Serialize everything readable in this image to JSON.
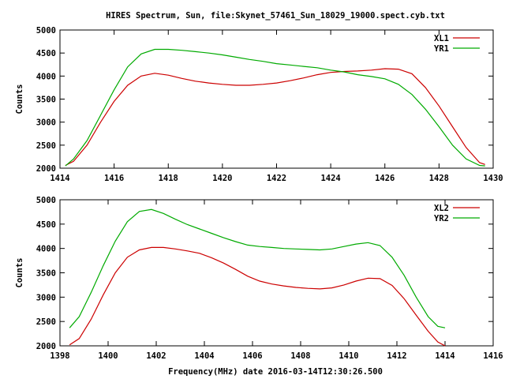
{
  "chart_data": [
    {
      "type": "line",
      "title": "HIRES Spectrum, Sun, file:Skynet_57461_Sun_18029_19000.spect.cyb.txt",
      "xlabel": "",
      "ylabel": "Counts",
      "xlim": [
        1414,
        1430
      ],
      "ylim": [
        2000,
        5000
      ],
      "x_ticks": [
        1414,
        1416,
        1418,
        1420,
        1422,
        1424,
        1426,
        1428,
        1430
      ],
      "y_ticks": [
        2000,
        2500,
        3000,
        3500,
        4000,
        4500,
        5000
      ],
      "legend_position": "top-right",
      "series": [
        {
          "name": "XL1",
          "color": "#cc0000",
          "points": [
            [
              1414.2,
              2060
            ],
            [
              1414.5,
              2150
            ],
            [
              1415,
              2500
            ],
            [
              1415.5,
              3000
            ],
            [
              1416,
              3450
            ],
            [
              1416.5,
              3800
            ],
            [
              1417,
              4000
            ],
            [
              1417.5,
              4060
            ],
            [
              1418,
              4020
            ],
            [
              1418.5,
              3950
            ],
            [
              1419,
              3890
            ],
            [
              1419.5,
              3850
            ],
            [
              1420,
              3820
            ],
            [
              1420.5,
              3800
            ],
            [
              1421,
              3800
            ],
            [
              1421.5,
              3820
            ],
            [
              1422,
              3850
            ],
            [
              1422.5,
              3900
            ],
            [
              1423,
              3960
            ],
            [
              1423.5,
              4030
            ],
            [
              1424,
              4080
            ],
            [
              1424.5,
              4100
            ],
            [
              1425,
              4110
            ],
            [
              1425.5,
              4130
            ],
            [
              1426,
              4160
            ],
            [
              1426.5,
              4150
            ],
            [
              1427,
              4050
            ],
            [
              1427.5,
              3750
            ],
            [
              1428,
              3350
            ],
            [
              1428.5,
              2900
            ],
            [
              1429,
              2450
            ],
            [
              1429.5,
              2120
            ],
            [
              1429.7,
              2080
            ]
          ]
        },
        {
          "name": "YR1",
          "color": "#00aa00",
          "points": [
            [
              1414.2,
              2050
            ],
            [
              1414.5,
              2200
            ],
            [
              1415,
              2600
            ],
            [
              1415.5,
              3150
            ],
            [
              1416,
              3700
            ],
            [
              1416.5,
              4200
            ],
            [
              1417,
              4480
            ],
            [
              1417.5,
              4580
            ],
            [
              1418,
              4580
            ],
            [
              1418.5,
              4560
            ],
            [
              1419,
              4530
            ],
            [
              1419.5,
              4500
            ],
            [
              1420,
              4460
            ],
            [
              1420.5,
              4410
            ],
            [
              1421,
              4360
            ],
            [
              1421.5,
              4320
            ],
            [
              1422,
              4270
            ],
            [
              1422.5,
              4240
            ],
            [
              1423,
              4210
            ],
            [
              1423.5,
              4180
            ],
            [
              1424,
              4130
            ],
            [
              1424.5,
              4090
            ],
            [
              1425,
              4030
            ],
            [
              1425.5,
              3990
            ],
            [
              1426,
              3940
            ],
            [
              1426.5,
              3820
            ],
            [
              1427,
              3600
            ],
            [
              1427.5,
              3280
            ],
            [
              1428,
              2900
            ],
            [
              1428.5,
              2500
            ],
            [
              1429,
              2200
            ],
            [
              1429.5,
              2060
            ],
            [
              1429.7,
              2050
            ]
          ]
        }
      ]
    },
    {
      "type": "line",
      "title": "",
      "xlabel": "Frequency(MHz) date 2016-03-14T12:30:26.500",
      "ylabel": "Counts",
      "xlim": [
        1398,
        1416
      ],
      "ylim": [
        2000,
        5000
      ],
      "x_ticks": [
        1398,
        1400,
        1402,
        1404,
        1406,
        1408,
        1410,
        1412,
        1414,
        1416
      ],
      "y_ticks": [
        2000,
        2500,
        3000,
        3500,
        4000,
        4500,
        5000
      ],
      "legend_position": "top-right",
      "series": [
        {
          "name": "XL2",
          "color": "#cc0000",
          "points": [
            [
              1398.4,
              2020
            ],
            [
              1398.8,
              2150
            ],
            [
              1399.3,
              2550
            ],
            [
              1399.8,
              3050
            ],
            [
              1400.3,
              3500
            ],
            [
              1400.8,
              3820
            ],
            [
              1401.3,
              3970
            ],
            [
              1401.8,
              4020
            ],
            [
              1402.3,
              4020
            ],
            [
              1402.8,
              3990
            ],
            [
              1403.3,
              3950
            ],
            [
              1403.8,
              3900
            ],
            [
              1404.3,
              3810
            ],
            [
              1404.8,
              3700
            ],
            [
              1405.3,
              3570
            ],
            [
              1405.8,
              3430
            ],
            [
              1406.3,
              3330
            ],
            [
              1406.8,
              3270
            ],
            [
              1407.3,
              3230
            ],
            [
              1407.8,
              3200
            ],
            [
              1408.3,
              3180
            ],
            [
              1408.8,
              3170
            ],
            [
              1409.3,
              3190
            ],
            [
              1409.8,
              3250
            ],
            [
              1410.3,
              3330
            ],
            [
              1410.8,
              3390
            ],
            [
              1411.3,
              3380
            ],
            [
              1411.8,
              3240
            ],
            [
              1412.3,
              2970
            ],
            [
              1412.8,
              2630
            ],
            [
              1413.3,
              2300
            ],
            [
              1413.7,
              2080
            ],
            [
              1414.0,
              2000
            ]
          ]
        },
        {
          "name": "YR2",
          "color": "#00aa00",
          "points": [
            [
              1398.4,
              2370
            ],
            [
              1398.8,
              2600
            ],
            [
              1399.3,
              3100
            ],
            [
              1399.8,
              3650
            ],
            [
              1400.3,
              4150
            ],
            [
              1400.8,
              4550
            ],
            [
              1401.3,
              4760
            ],
            [
              1401.8,
              4800
            ],
            [
              1402.3,
              4720
            ],
            [
              1402.8,
              4600
            ],
            [
              1403.3,
              4490
            ],
            [
              1403.8,
              4400
            ],
            [
              1404.3,
              4310
            ],
            [
              1404.8,
              4220
            ],
            [
              1405.3,
              4140
            ],
            [
              1405.8,
              4070
            ],
            [
              1406.3,
              4040
            ],
            [
              1406.8,
              4020
            ],
            [
              1407.3,
              4000
            ],
            [
              1407.8,
              3990
            ],
            [
              1408.3,
              3980
            ],
            [
              1408.8,
              3970
            ],
            [
              1409.3,
              3990
            ],
            [
              1409.8,
              4040
            ],
            [
              1410.3,
              4090
            ],
            [
              1410.8,
              4120
            ],
            [
              1411.3,
              4060
            ],
            [
              1411.8,
              3820
            ],
            [
              1412.3,
              3450
            ],
            [
              1412.8,
              3000
            ],
            [
              1413.3,
              2600
            ],
            [
              1413.7,
              2400
            ],
            [
              1414.0,
              2370
            ]
          ]
        }
      ]
    }
  ]
}
